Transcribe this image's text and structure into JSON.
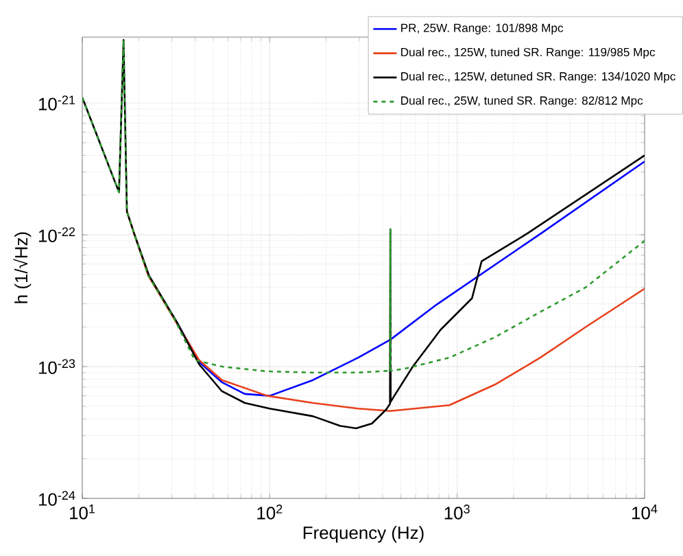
{
  "chart_data": {
    "type": "line",
    "xlabel": "Frequency (Hz)",
    "ylabel": "h (1/√Hz)",
    "log": "xy",
    "grid": true,
    "legend": "top right",
    "xlim": [
      10,
      10000
    ],
    "ylim": [
      1e-24,
      3.16e-21
    ],
    "xticks": [
      {
        "value": 10,
        "label": "10$^{1}$"
      },
      {
        "value": 100,
        "label": "10$^{2}$"
      },
      {
        "value": 1000,
        "label": "10$^{3}$"
      },
      {
        "value": 10000,
        "label": "10$^{4}$"
      }
    ],
    "yticks": [
      {
        "value": 1e-24,
        "label": "10$^{-24}$"
      },
      {
        "value": 1e-23,
        "label": "10$^{-23}$"
      },
      {
        "value": 1e-22,
        "label": "10$^{-22}$"
      },
      {
        "value": 1e-21,
        "label": "10$^{-21}$"
      }
    ],
    "series": [
      {
        "name": "PR, 25W. Range: 101/898 Mpc",
        "color": "#0000ff",
        "line_style": "solid",
        "x": [
          31.8,
          42.1,
          55.6,
          73.6,
          100,
          170,
          297,
          440,
          776,
          2790,
          10000
        ],
        "values": [
          2.2e-23,
          1.08e-23,
          7.6e-24,
          6.2e-24,
          6e-24,
          7.9e-24,
          1.17e-23,
          1.6e-23,
          2.95e-23,
          1.02e-22,
          3.6e-22
        ]
      },
      {
        "name": "Dual rec., 125W, tuned SR. Range: 119/985 Mpc",
        "color": "#e8401c",
        "line_style": "solid",
        "x": [
          17.3,
          19,
          22.5,
          31.5,
          42,
          55.6,
          97,
          170,
          297,
          440,
          910,
          1590,
          2780,
          4860,
          10000
        ],
        "values": [
          1.5e-22,
          1e-22,
          4.9e-23,
          2.2e-23,
          1.12e-23,
          7.9e-24,
          6e-24,
          5.3e-24,
          4.8e-24,
          4.6e-24,
          5.1e-24,
          7.3e-24,
          1.17e-23,
          2e-23,
          3.9e-23
        ]
      },
      {
        "name": "Dual rec., 125W, detuned SR. Range: 134/1020 Mpc",
        "color": "#000000",
        "line_style": "solid",
        "x": [
          10,
          15.7,
          16.6,
          17.3,
          19,
          22.7,
          31.8,
          42,
          55.6,
          73.6,
          100,
          170,
          238,
          289,
          351,
          417,
          438,
          440,
          442,
          462,
          580,
          815,
          1200,
          1350,
          2360,
          10000
        ],
        "values": [
          1.1e-21,
          2.1e-22,
          3e-21,
          1.5e-22,
          1e-22,
          4.9e-23,
          2.2e-23,
          1.04e-23,
          6.5e-24,
          5.3e-24,
          4.8e-24,
          4.2e-24,
          3.55e-24,
          3.4e-24,
          3.7e-24,
          4.7e-24,
          5.2e-24,
          1.1e-22,
          5.4e-24,
          6e-24,
          1e-23,
          1.9e-23,
          3.3e-23,
          6.3e-23,
          1.02e-22,
          4e-22
        ]
      },
      {
        "name": "Dual rec., 25W, tuned SR. Range: 82/812 Mpc",
        "color": "#2e9a2e",
        "line_style": "dashed",
        "x": [
          10,
          15.7,
          16.6,
          17.3,
          19,
          22.5,
          31,
          39.8,
          55.6,
          97,
          170,
          297,
          438,
          440,
          442,
          520,
          910,
          1590,
          2780,
          4860,
          10000
        ],
        "values": [
          1.1e-21,
          2.1e-22,
          3e-21,
          1.5e-22,
          1e-22,
          4.9e-23,
          2.3e-23,
          1.12e-23,
          1e-23,
          9.2e-24,
          9e-24,
          9e-24,
          9.3e-24,
          1.1e-22,
          9.3e-24,
          9.6e-24,
          1.17e-23,
          1.67e-23,
          2.6e-23,
          4e-23,
          9e-23
        ]
      }
    ]
  }
}
